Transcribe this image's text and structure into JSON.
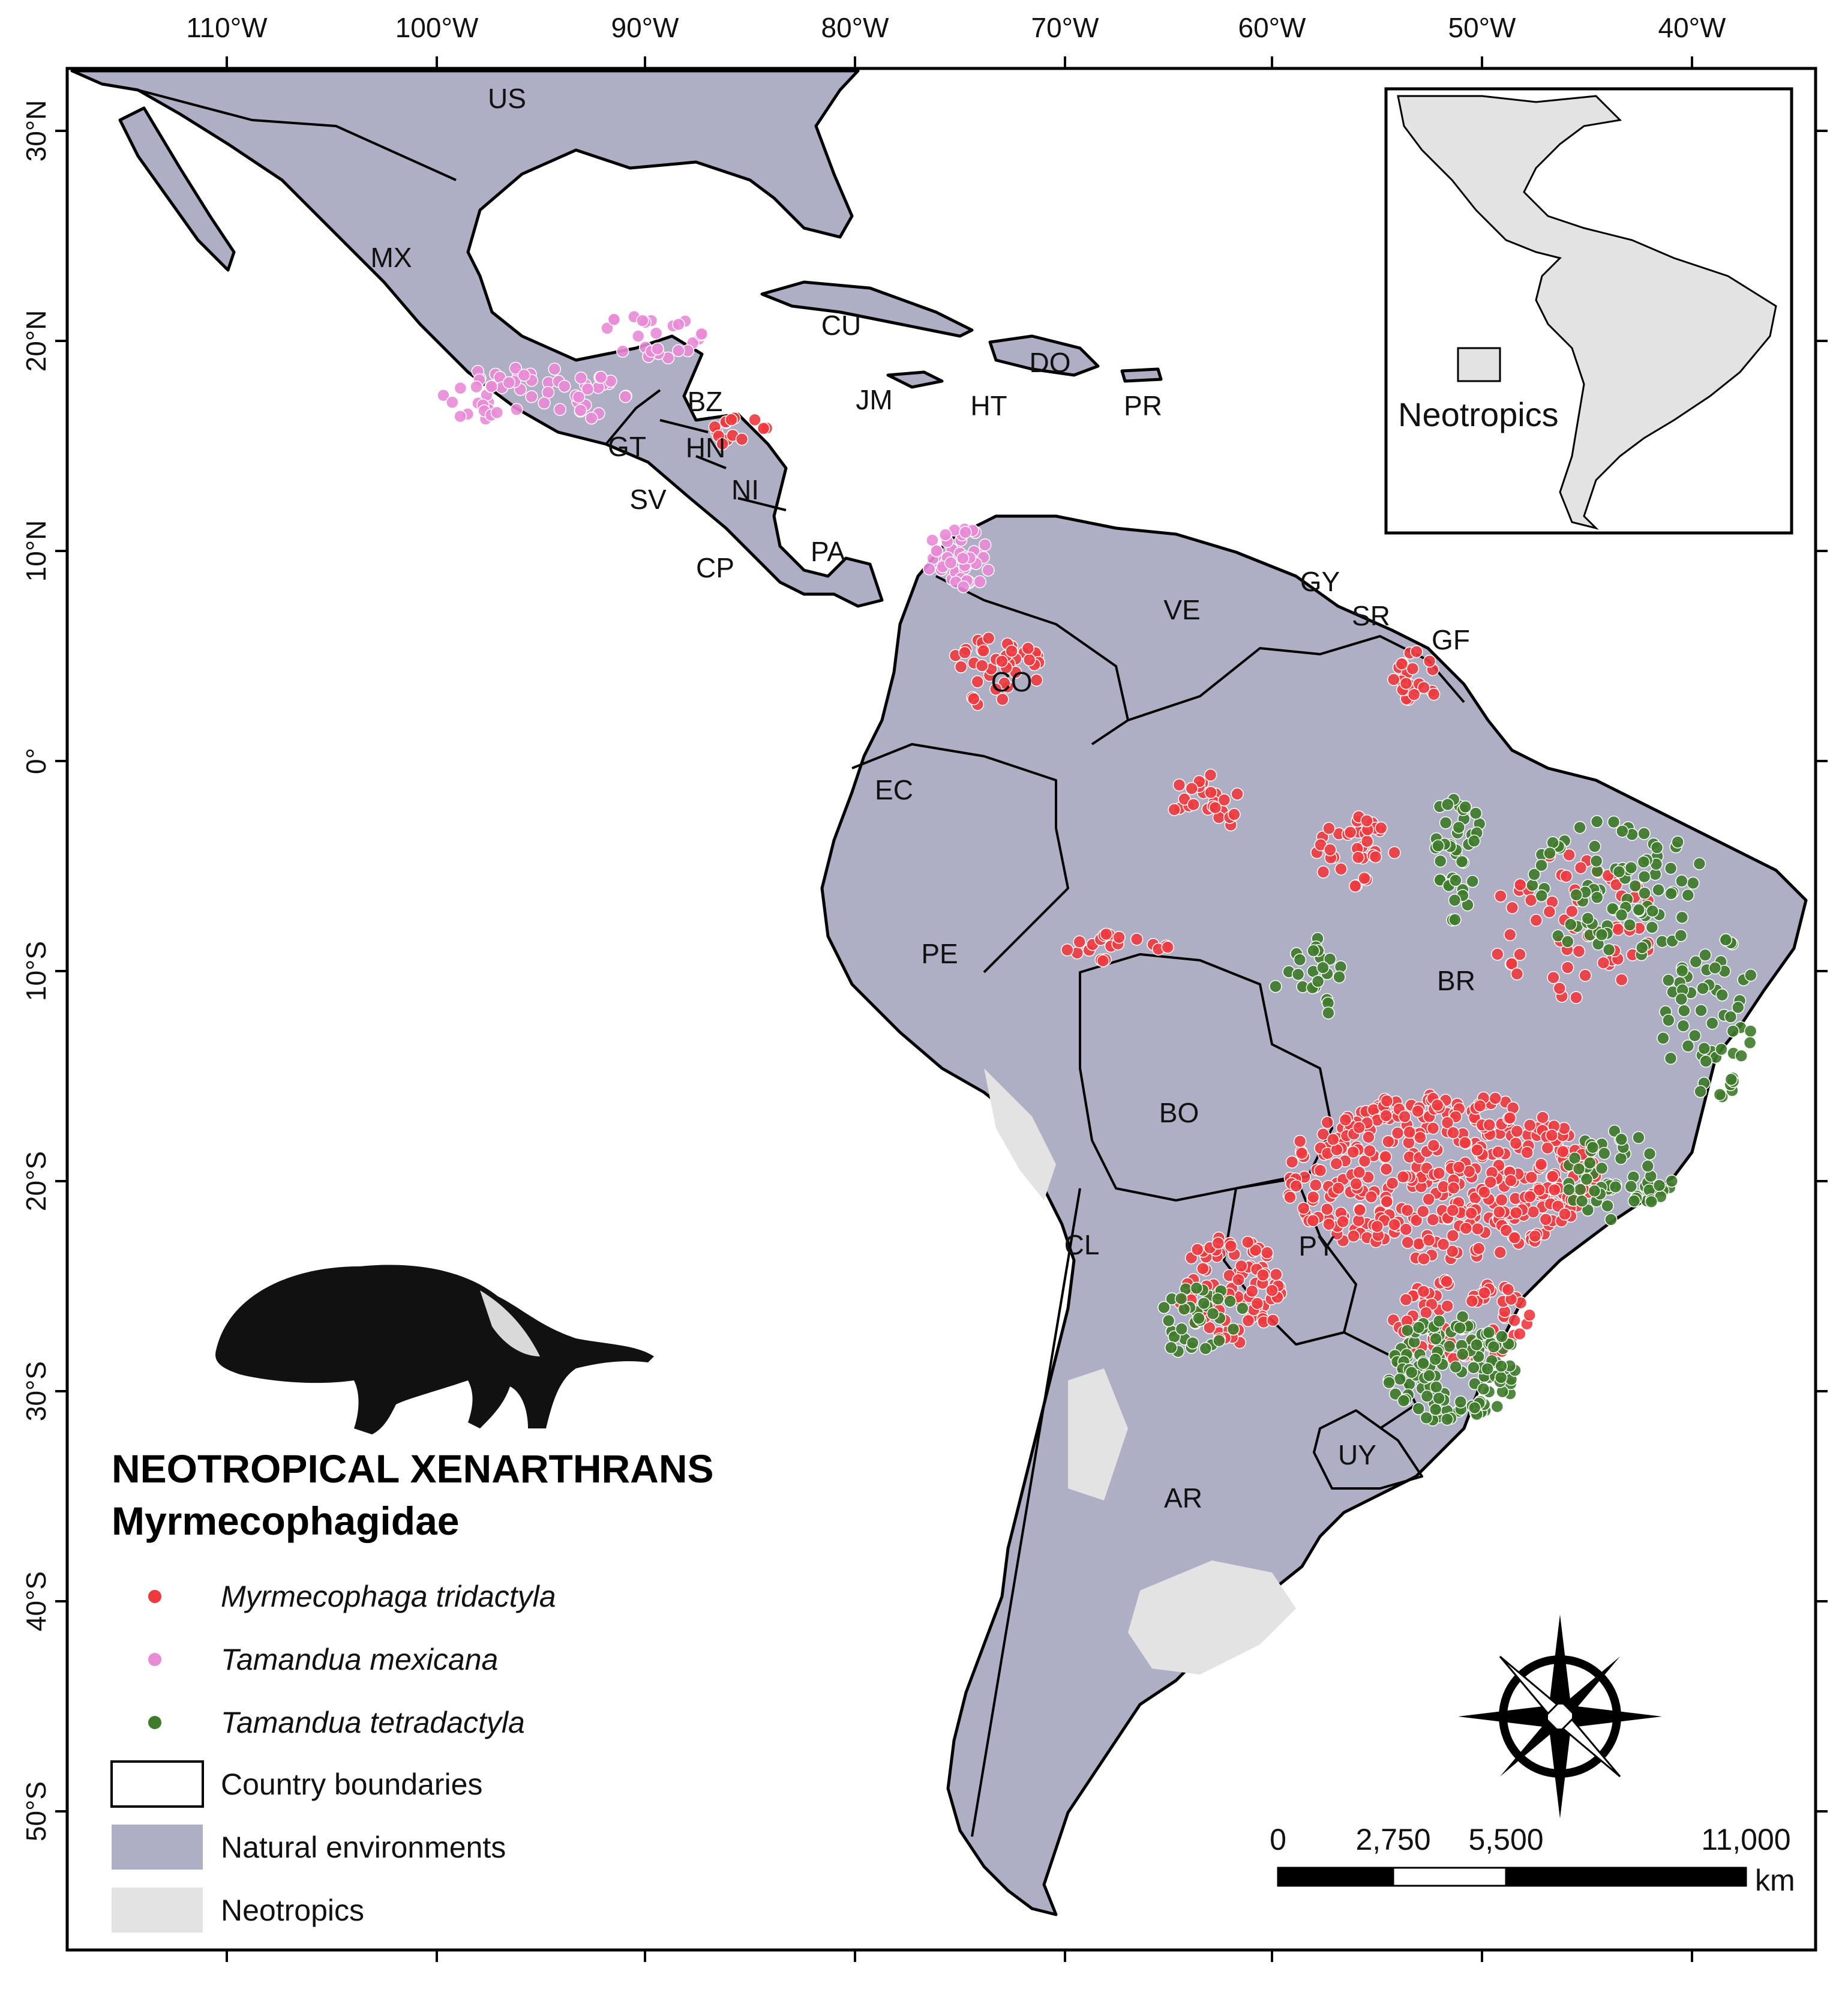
{
  "map": {
    "title": "NEOTROPICAL XENARTHRANS",
    "subtitle": "Myrmecophagidae",
    "longitude_ticks": [
      "110°W",
      "100°W",
      "90°W",
      "80°W",
      "70°W",
      "60°W",
      "50°W",
      "40°W"
    ],
    "latitude_ticks": [
      "30°N",
      "20°N",
      "10°N",
      "0°",
      "10°S",
      "20°S",
      "30°S",
      "40°S",
      "50°S"
    ],
    "countries": [
      "US",
      "MX",
      "CU",
      "JM",
      "HT",
      "DO",
      "PR",
      "BZ",
      "GT",
      "HN",
      "SV",
      "NI",
      "CP",
      "PA",
      "VE",
      "GY",
      "SR",
      "GF",
      "CO",
      "EC",
      "PE",
      "BR",
      "BO",
      "PY",
      "CL",
      "AR",
      "UY"
    ],
    "colors": {
      "natural_environments": "#aeaec4",
      "neotropics": "#e3e3e3",
      "water": "#ffffff",
      "boundaries": "#000000",
      "myrmecophaga_tridactyla": "#ee3a3f",
      "tamandua_mexicana": "#e98ad6",
      "tamandua_tetradactyla": "#3e7b2a"
    }
  },
  "legend": {
    "species": [
      {
        "label": "Myrmecophaga tridactyla",
        "color": "#ee3a3f"
      },
      {
        "label": "Tamandua mexicana",
        "color": "#e98ad6"
      },
      {
        "label": "Tamandua tetradactyla",
        "color": "#3e7b2a"
      }
    ],
    "layers": [
      {
        "label": "Country boundaries",
        "fill": "#ffffff"
      },
      {
        "label": "Natural environments",
        "fill": "#aeaec4"
      },
      {
        "label": "Neotropics",
        "fill": "#e3e3e3"
      }
    ]
  },
  "inset": {
    "label": "Neotropics"
  },
  "scale_bar": {
    "labels": [
      "0",
      "2,750",
      "5,500",
      "11,000"
    ],
    "unit": "km"
  },
  "icons": [
    "compass-rose-icon",
    "anteater-silhouette-icon"
  ]
}
